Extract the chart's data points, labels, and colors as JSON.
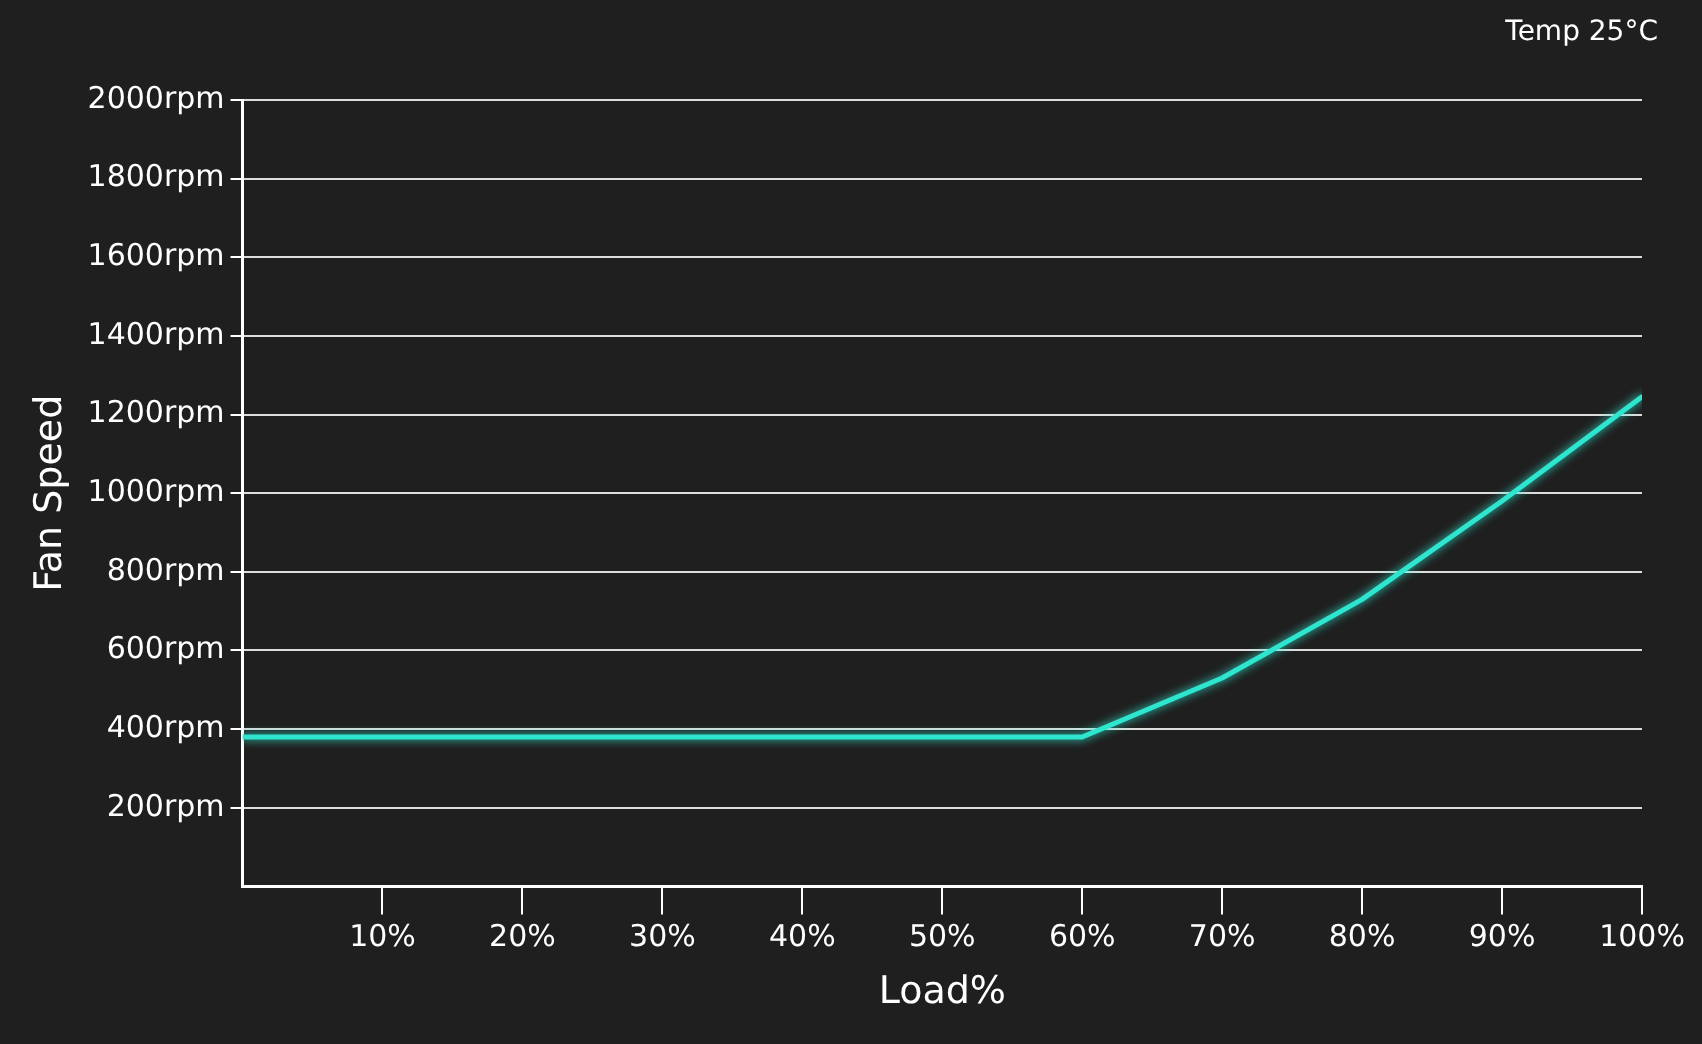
{
  "chart_data": {
    "type": "line",
    "xlabel": "Load%",
    "ylabel": "Fan Speed",
    "annotations": [
      "Temp 25°C"
    ],
    "x": [
      0,
      60,
      70,
      80,
      90,
      100
    ],
    "series": [
      {
        "color": "#2ee6d0",
        "values": [
          380,
          380,
          530,
          730,
          980,
          1245
        ]
      }
    ],
    "xlim": [
      0,
      100
    ],
    "xticks": [
      {
        "value": 10,
        "label": "10%"
      },
      {
        "value": 20,
        "label": "20%"
      },
      {
        "value": 30,
        "label": "30%"
      },
      {
        "value": 40,
        "label": "40%"
      },
      {
        "value": 50,
        "label": "50%"
      },
      {
        "value": 60,
        "label": "60%"
      },
      {
        "value": 70,
        "label": "70%"
      },
      {
        "value": 80,
        "label": "80%"
      },
      {
        "value": 90,
        "label": "90%"
      },
      {
        "value": 100,
        "label": "100%"
      }
    ],
    "ylim": [
      0,
      2000
    ],
    "yticks": [
      {
        "value": 200,
        "label": "200rpm"
      },
      {
        "value": 400,
        "label": "400rpm"
      },
      {
        "value": 600,
        "label": "600rpm"
      },
      {
        "value": 800,
        "label": "800rpm"
      },
      {
        "value": 1000,
        "label": "1000rpm"
      },
      {
        "value": 1200,
        "label": "1200rpm"
      },
      {
        "value": 1400,
        "label": "1400rpm"
      },
      {
        "value": 1600,
        "label": "1600rpm"
      },
      {
        "value": 1800,
        "label": "1800rpm"
      },
      {
        "value": 2000,
        "label": "2000rpm"
      }
    ],
    "grid": "y",
    "legend": false,
    "marker": "none",
    "line_style": "solid"
  }
}
